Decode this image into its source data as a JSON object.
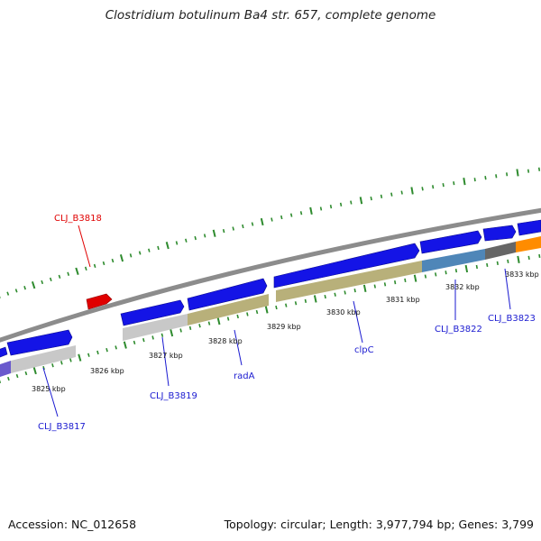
{
  "title": "Clostridium botulinum Ba4 str. 657, complete genome",
  "footer": {
    "accession": "Accession: NC_012658",
    "topology": "Topology: circular; Length: 3,977,794 bp; Genes: 3,799"
  },
  "colors": {
    "background": "#ffffff",
    "backbone": "#8c8c8c",
    "ticks": "#2e8b2e",
    "cds": "#1414e6",
    "gc_skew_olive": "#b8b07a",
    "gray_feature": "#c8c8c8",
    "steelblue_feature": "#4f86b8",
    "darkgray_feature": "#666666",
    "orange_feature": "#ff8c00",
    "red_label": "#e00000",
    "blue_label": "#1a1ad0"
  },
  "ticks": [
    {
      "label": "3825 kbp"
    },
    {
      "label": "3826 kbp"
    },
    {
      "label": "3827 kbp"
    },
    {
      "label": "3828 kbp"
    },
    {
      "label": "3829 kbp"
    },
    {
      "label": "3830 kbp"
    },
    {
      "label": "3831 kbp"
    },
    {
      "label": "3832 kbp"
    },
    {
      "label": "3833 kbp"
    }
  ],
  "genes": [
    {
      "name": "CLJ_B3818",
      "color": "red"
    },
    {
      "name": "CLJ_B3817",
      "color": "blue"
    },
    {
      "name": "CLJ_B3819",
      "color": "blue"
    },
    {
      "name": "radA",
      "color": "blue"
    },
    {
      "name": "clpC",
      "color": "blue"
    },
    {
      "name": "CLJ_B3822",
      "color": "blue"
    },
    {
      "name": "CLJ_B3823",
      "color": "blue"
    }
  ]
}
